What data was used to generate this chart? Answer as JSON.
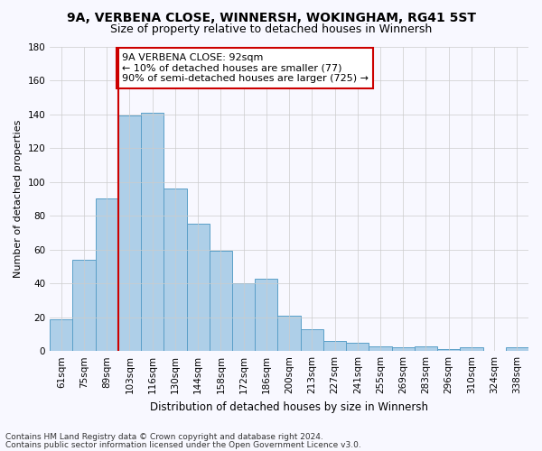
{
  "title1": "9A, VERBENA CLOSE, WINNERSH, WOKINGHAM, RG41 5ST",
  "title2": "Size of property relative to detached houses in Winnersh",
  "xlabel": "Distribution of detached houses by size in Winnersh",
  "ylabel": "Number of detached properties",
  "bin_labels": [
    "61sqm",
    "75sqm",
    "89sqm",
    "103sqm",
    "116sqm",
    "130sqm",
    "144sqm",
    "158sqm",
    "172sqm",
    "186sqm",
    "200sqm",
    "213sqm",
    "227sqm",
    "241sqm",
    "255sqm",
    "269sqm",
    "283sqm",
    "296sqm",
    "310sqm",
    "324sqm",
    "338sqm"
  ],
  "bar_values": [
    19,
    54,
    90,
    139,
    141,
    96,
    75,
    59,
    40,
    43,
    21,
    13,
    6,
    5,
    3,
    2,
    3,
    1,
    2,
    0,
    2
  ],
  "bar_color": "#aecfe8",
  "bar_edge_color": "#5a9fc8",
  "vline_color": "#cc0000",
  "ylim": [
    0,
    180
  ],
  "yticks": [
    0,
    20,
    40,
    60,
    80,
    100,
    120,
    140,
    160,
    180
  ],
  "annotation_text": "9A VERBENA CLOSE: 92sqm\n← 10% of detached houses are smaller (77)\n90% of semi-detached houses are larger (725) →",
  "annotation_box_color": "#ffffff",
  "annotation_border_color": "#cc0000",
  "grid_color": "#cccccc",
  "background_color": "#f8f8ff",
  "footer1": "Contains HM Land Registry data © Crown copyright and database right 2024.",
  "footer2": "Contains public sector information licensed under the Open Government Licence v3.0.",
  "title1_fontsize": 10,
  "title2_fontsize": 9,
  "xlabel_fontsize": 8.5,
  "ylabel_fontsize": 8,
  "tick_fontsize": 7.5,
  "annotation_fontsize": 8,
  "footer_fontsize": 6.5
}
